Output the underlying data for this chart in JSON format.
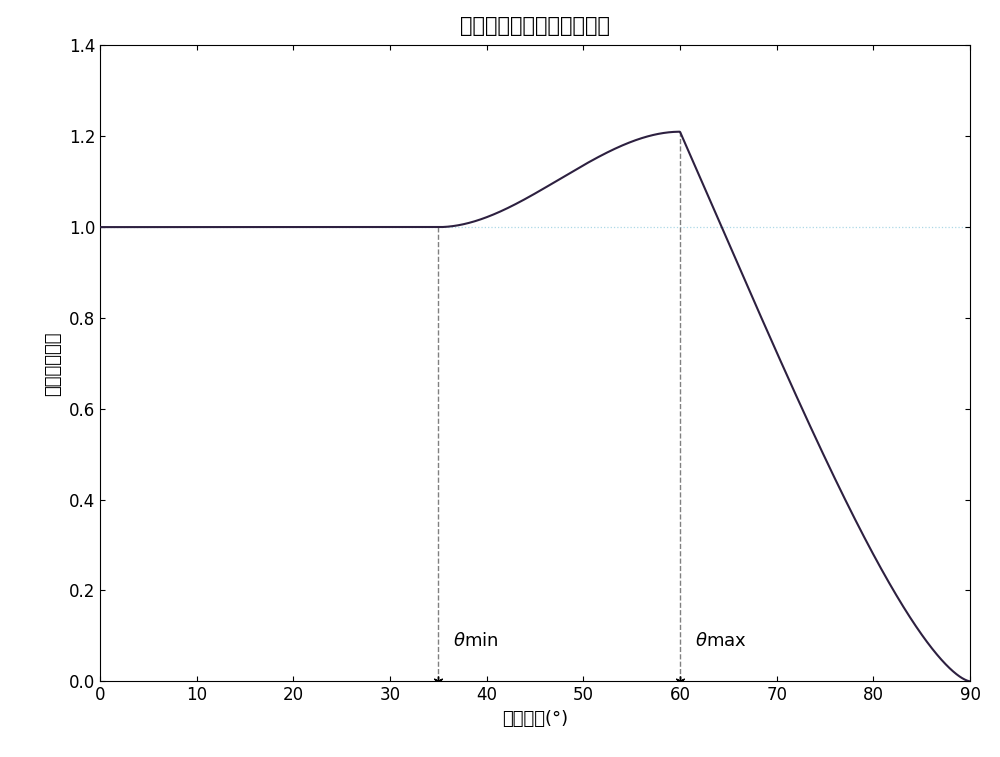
{
  "title": "离子溅射刻蚀刻蚀产额曲线",
  "xlabel": "入射角度(°)",
  "ylabel": "离子刻蚀产额",
  "xlim": [
    0,
    90
  ],
  "ylim": [
    0,
    1.4
  ],
  "xticks": [
    0,
    10,
    20,
    30,
    40,
    50,
    60,
    70,
    80,
    90
  ],
  "yticks": [
    0,
    0.2,
    0.4,
    0.6,
    0.8,
    1.0,
    1.2,
    1.4
  ],
  "theta_min": 35,
  "theta_max": 60,
  "curve_color": "#2d2040",
  "flat_line_color": "#add8e6",
  "dashed_line_color": "#808080",
  "title_fontsize": 15,
  "label_fontsize": 13,
  "tick_fontsize": 12,
  "annotation_fontsize": 13,
  "fig_width": 10.0,
  "fig_height": 7.57
}
